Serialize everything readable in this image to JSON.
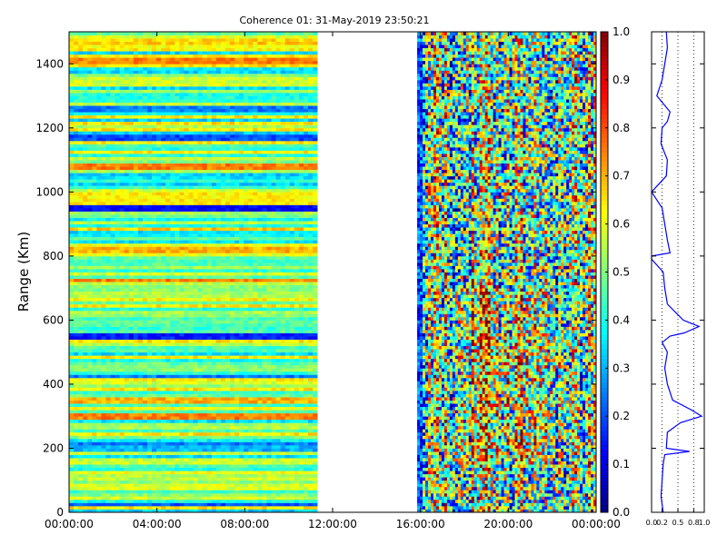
{
  "figure": {
    "title": "Coherence 01: 31-May-2019 23:50:21"
  },
  "chart_data": [
    {
      "type": "heatmap",
      "title": "Coherence 01: 31-May-2019 23:50:21",
      "xlabel": "",
      "ylabel": "Range (Km)",
      "x_ticks": [
        "00:00:00",
        "04:00:00",
        "08:00:00",
        "12:00:00",
        "16:00:00",
        "20:00:00",
        "00:00:00"
      ],
      "x_range_hours": [
        0,
        24
      ],
      "y_ticks": [
        0,
        200,
        400,
        600,
        800,
        1000,
        1200,
        1400
      ],
      "ylim": [
        0,
        1500
      ],
      "data_segments_hours": [
        [
          0,
          11.3
        ],
        [
          15.85,
          24
        ]
      ],
      "colormap": "jet",
      "colorbar": {
        "range": [
          0,
          1
        ],
        "ticks": [
          "0.0",
          "0.1",
          "0.2",
          "0.3",
          "0.4",
          "0.5",
          "0.6",
          "0.7",
          "0.8",
          "0.9",
          "1.0"
        ]
      },
      "horizontal_bands": [
        {
          "range_km": 25,
          "value": 0.2
        },
        {
          "range_km": 200,
          "value": 0.3
        },
        {
          "range_km": 215,
          "value": 0.25
        },
        {
          "range_km": 255,
          "value": 0.45
        },
        {
          "range_km": 285,
          "value": 0.35
        },
        {
          "range_km": 300,
          "value": 0.75
        },
        {
          "range_km": 350,
          "value": 0.7
        },
        {
          "range_km": 425,
          "value": 0.25
        },
        {
          "range_km": 550,
          "value": 0.15
        },
        {
          "range_km": 725,
          "value": 0.75
        },
        {
          "range_km": 820,
          "value": 0.7
        },
        {
          "range_km": 950,
          "value": 0.12
        },
        {
          "range_km": 1080,
          "value": 0.75
        },
        {
          "range_km": 1170,
          "value": 0.2
        },
        {
          "range_km": 1260,
          "value": 0.25
        },
        {
          "range_km": 1410,
          "value": 0.75
        }
      ]
    },
    {
      "type": "line",
      "title": "",
      "xlabel": "",
      "ylabel": "",
      "x_ticks": [
        "0.0",
        "0.2",
        "0.5",
        "0.8",
        "1.0"
      ],
      "xlim": [
        0,
        1
      ],
      "ylim": [
        0,
        1500
      ],
      "grid": "vertical dotted",
      "series": [
        {
          "color": "#0000ff",
          "y": [
            0,
            50,
            100,
            150,
            180,
            190,
            200,
            250,
            280,
            300,
            320,
            350,
            400,
            450,
            500,
            530,
            550,
            560,
            580,
            600,
            650,
            700,
            750,
            790,
            800,
            810,
            850,
            900,
            950,
            1000,
            1050,
            1100,
            1150,
            1200,
            1220,
            1250,
            1300,
            1350,
            1400,
            1450,
            1500
          ],
          "x": [
            0.22,
            0.18,
            0.2,
            0.22,
            0.25,
            0.72,
            0.28,
            0.3,
            0.55,
            0.95,
            0.75,
            0.4,
            0.3,
            0.25,
            0.3,
            0.2,
            0.35,
            0.62,
            0.9,
            0.6,
            0.3,
            0.25,
            0.22,
            0.0,
            0.0,
            0.35,
            0.3,
            0.25,
            0.2,
            0.0,
            0.28,
            0.3,
            0.18,
            0.2,
            0.3,
            0.35,
            0.1,
            0.2,
            0.25,
            0.3,
            0.28
          ]
        }
      ]
    }
  ]
}
